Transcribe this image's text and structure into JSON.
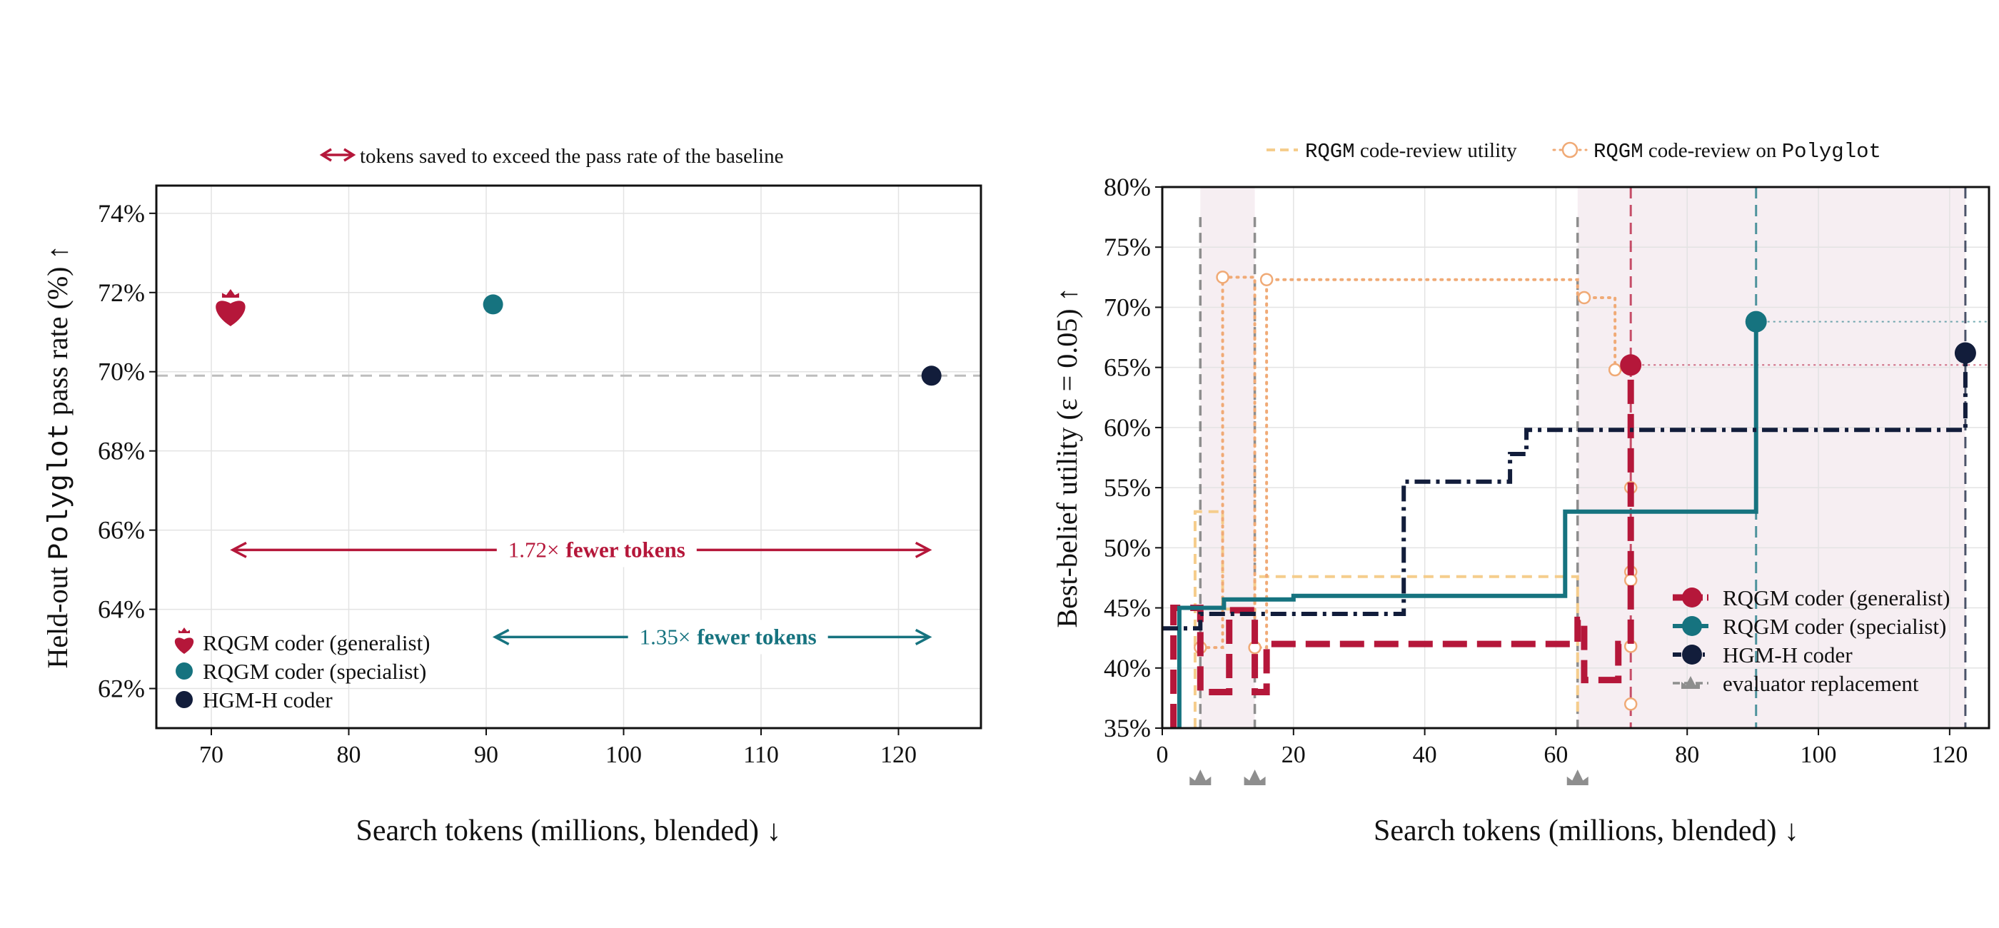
{
  "colors": {
    "generalist": "#b5173a",
    "specialist": "#16737f",
    "hgm": "#121d3b",
    "review": "#f5cd8c",
    "review_marker": "#f0aa76",
    "evaluator": "#8e8e8e",
    "shade": "#f6eef2",
    "grid": "#e3e3e3",
    "baseline": "#bdbdbd"
  },
  "chart_data": [
    {
      "type": "scatter",
      "legend_top": "tokens saved to exceed the pass rate of the baseline",
      "xlabel": "Search tokens (millions, blended) ↓",
      "ylabel_prefix": "Held-out ",
      "ylabel_mono": "Polyglot",
      "ylabel_suffix": " pass rate (%) ↑",
      "xlim": [
        66,
        126
      ],
      "ylim": [
        61.0,
        74.7
      ],
      "xticks": [
        70,
        80,
        90,
        100,
        110,
        120
      ],
      "xtick_labels": [
        "70",
        "80",
        "90",
        "100",
        "110",
        "120"
      ],
      "yticks": [
        62,
        64,
        66,
        68,
        70,
        72,
        74
      ],
      "ytick_labels": [
        "62%",
        "64%",
        "66%",
        "68%",
        "70%",
        "72%",
        "74%"
      ],
      "grid": true,
      "baseline_y": 69.9,
      "points": [
        {
          "name": "RQGM coder (generalist)",
          "x": 71.4,
          "y": 71.6,
          "marker": "heart",
          "color_key": "generalist"
        },
        {
          "name": "RQGM coder (specialist)",
          "x": 90.5,
          "y": 71.7,
          "marker": "circle",
          "color_key": "specialist"
        },
        {
          "name": "HGM-H coder",
          "x": 122.4,
          "y": 69.9,
          "marker": "circle",
          "color_key": "hgm"
        }
      ],
      "annotations": [
        {
          "from_x": 71.4,
          "to_x": 122.4,
          "y": 65.5,
          "factor": "1.72×",
          "label": "fewer tokens",
          "color_key": "generalist"
        },
        {
          "from_x": 90.5,
          "to_x": 122.4,
          "y": 63.3,
          "factor": "1.35×",
          "label": "fewer tokens",
          "color_key": "specialist"
        }
      ],
      "legend": [
        {
          "label": "RQGM coder (generalist)",
          "marker": "heart",
          "color_key": "generalist"
        },
        {
          "label": "RQGM coder (specialist)",
          "marker": "circle",
          "color_key": "specialist"
        },
        {
          "label": "HGM-H coder",
          "marker": "circle",
          "color_key": "hgm"
        }
      ],
      "legend_position": "lower-left"
    },
    {
      "type": "line",
      "xlabel": "Search tokens (millions, blended) ↓",
      "ylabel": "Best-belief utility (ε = 0.05) ↑",
      "xlim": [
        0,
        126
      ],
      "ylim": [
        35,
        80
      ],
      "xticks": [
        0,
        20,
        40,
        60,
        80,
        100,
        120
      ],
      "xtick_labels": [
        "0",
        "20",
        "40",
        "60",
        "80",
        "100",
        "120"
      ],
      "yticks": [
        35,
        40,
        45,
        50,
        55,
        60,
        65,
        70,
        75,
        80
      ],
      "ytick_labels": [
        "35%",
        "40%",
        "45%",
        "50%",
        "55%",
        "60%",
        "65%",
        "70%",
        "75%",
        "80%"
      ],
      "grid": true,
      "shaded_spans": [
        [
          5.8,
          14.1
        ],
        [
          63.3,
          71.4
        ],
        [
          71.4,
          90.5
        ],
        [
          90.5,
          122.4
        ]
      ],
      "evaluator_replacements": [
        5.8,
        14.1,
        63.3
      ],
      "final_lines": [
        {
          "x": 71.4,
          "color_key": "generalist"
        },
        {
          "x": 90.5,
          "color_key": "specialist"
        },
        {
          "x": 122.4,
          "color_key": "hgm"
        }
      ],
      "series": [
        {
          "name": "RQGM coder (generalist)",
          "color_key": "generalist",
          "style": "dashed-thick",
          "points": [
            [
              1.7,
              35
            ],
            [
              1.7,
              45
            ],
            [
              5.8,
              45
            ],
            [
              5.8,
              38
            ],
            [
              10.2,
              38
            ],
            [
              10.2,
              44.8
            ],
            [
              14.1,
              44.8
            ],
            [
              14.1,
              38
            ],
            [
              15.9,
              38
            ],
            [
              15.9,
              42
            ],
            [
              63.3,
              42
            ],
            [
              63.3,
              44
            ],
            [
              64.3,
              44
            ],
            [
              64.3,
              39
            ],
            [
              69.5,
              39
            ],
            [
              69.5,
              42
            ],
            [
              71.4,
              42
            ],
            [
              71.4,
              65.2
            ]
          ],
          "end_point": [
            71.4,
            65.2
          ]
        },
        {
          "name": "RQGM coder (specialist)",
          "color_key": "specialist",
          "style": "solid",
          "points": [
            [
              2.6,
              35
            ],
            [
              2.6,
              45
            ],
            [
              9.4,
              45
            ],
            [
              9.4,
              45.7
            ],
            [
              20.0,
              45.7
            ],
            [
              20.0,
              46
            ],
            [
              61.4,
              46
            ],
            [
              61.4,
              53
            ],
            [
              90.5,
              53
            ],
            [
              90.5,
              68.8
            ]
          ],
          "end_point": [
            90.5,
            68.8
          ]
        },
        {
          "name": "HGM-H coder",
          "color_key": "hgm",
          "style": "dashdot",
          "points": [
            [
              0,
              43.3
            ],
            [
              5.8,
              43.3
            ],
            [
              5.8,
              44.5
            ],
            [
              36.8,
              44.5
            ],
            [
              36.8,
              55.5
            ],
            [
              53.0,
              55.5
            ],
            [
              53.0,
              57.8
            ],
            [
              55.5,
              57.8
            ],
            [
              55.5,
              59.8
            ],
            [
              122.4,
              59.8
            ],
            [
              122.4,
              66.2
            ]
          ],
          "end_point": [
            122.4,
            66.2
          ]
        },
        {
          "name": "RQGM code-review utility",
          "color_key": "review",
          "style": "dashed-thin",
          "points": [
            [
              5.0,
              35
            ],
            [
              5.0,
              53
            ],
            [
              9.2,
              53
            ],
            [
              9.2,
              44.9
            ],
            [
              14.1,
              44.9
            ],
            [
              14.1,
              47.6
            ],
            [
              63.3,
              47.6
            ],
            [
              63.3,
              36
            ]
          ]
        },
        {
          "name": "RQGM code-review on Polyglot",
          "color_key": "review_marker",
          "style": "dotted",
          "points": [
            [
              5.8,
              41.7
            ],
            [
              9.2,
              41.7
            ],
            [
              9.2,
              72.5
            ],
            [
              14.1,
              72.5
            ],
            [
              14.1,
              41.7
            ],
            [
              15.9,
              41.7
            ],
            [
              15.9,
              72.3
            ],
            [
              63.3,
              72.3
            ],
            [
              63.3,
              70.8
            ],
            [
              69.0,
              70.8
            ],
            [
              69.0,
              64.8
            ],
            [
              71.4,
              64.8
            ]
          ],
          "markers": [
            [
              5.8,
              41.7
            ],
            [
              9.2,
              72.5
            ],
            [
              14.1,
              41.7
            ],
            [
              15.9,
              72.3
            ],
            [
              64.3,
              70.8
            ],
            [
              69.0,
              64.8
            ],
            [
              71.4,
              55.0
            ],
            [
              71.4,
              48.0
            ],
            [
              71.4,
              47.3
            ],
            [
              71.4,
              41.8
            ],
            [
              71.4,
              37.0
            ]
          ]
        }
      ],
      "ref_lines": [
        {
          "from_x": 90.5,
          "to_x": 126,
          "y": 68.8,
          "color_key": "specialist"
        },
        {
          "from_x": 71.4,
          "to_x": 126,
          "y": 65.2,
          "color_key": "generalist"
        }
      ],
      "legend_top": [
        {
          "label_mono": "RQGM",
          "label_rest": " code-review utility",
          "style": "dashed-thin",
          "color_key": "review"
        },
        {
          "label_mono": "RQGM",
          "label_rest": " code-review on ",
          "label_mono2": "Polyglot",
          "style": "dotted",
          "color_key": "review_marker"
        }
      ],
      "legend": [
        {
          "label": "RQGM coder (generalist)",
          "style": "dashed-thick",
          "color_key": "generalist"
        },
        {
          "label": "RQGM coder (specialist)",
          "style": "solid",
          "color_key": "specialist"
        },
        {
          "label": "HGM-H coder",
          "style": "dashdot",
          "color_key": "hgm"
        },
        {
          "label": "evaluator replacement",
          "style": "evaluator",
          "color_key": "evaluator"
        }
      ],
      "legend_position": "lower-right"
    }
  ]
}
